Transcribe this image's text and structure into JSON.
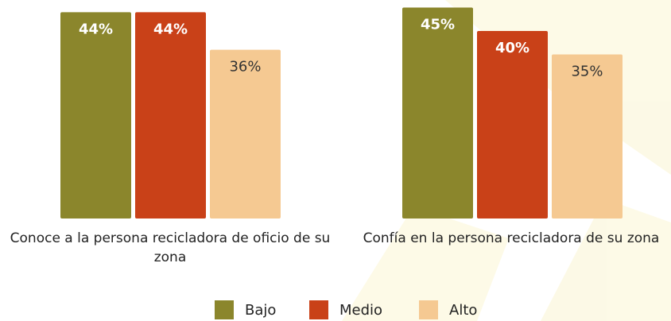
{
  "chart_data": {
    "type": "bar",
    "categories": [
      "Conoce a la persona recicladora de oficio de su zona",
      "Confía en la persona recicladora de su zona"
    ],
    "series": [
      {
        "name": "Bajo",
        "color": "#8b862c",
        "values": [
          44,
          45
        ],
        "value_labels": [
          "44%",
          "45%"
        ]
      },
      {
        "name": "Medio",
        "color": "#c94118",
        "values": [
          44,
          40
        ],
        "value_labels": [
          "44%",
          "40%"
        ]
      },
      {
        "name": "Alto",
        "color": "#f5c992",
        "values": [
          36,
          35
        ],
        "value_labels": [
          "36%",
          "35%"
        ]
      }
    ]
  }
}
